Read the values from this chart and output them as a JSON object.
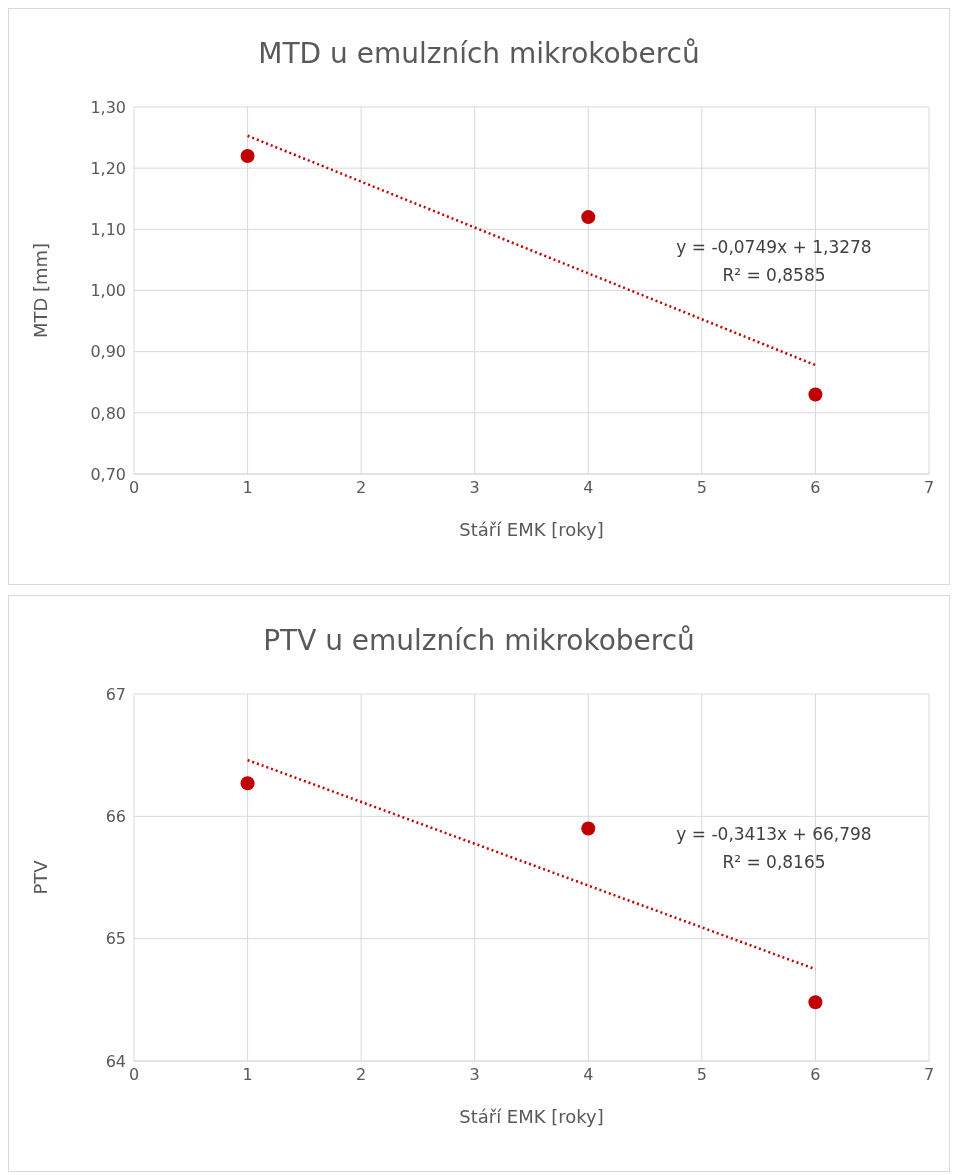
{
  "chart_data": [
    {
      "type": "scatter",
      "title": "MTD u emulzních mikrokoberců",
      "xlabel": "Stáří EMK [roky]",
      "ylabel": "MTD [mm]",
      "series": [
        {
          "color": "#c00000",
          "x": [
            1,
            4,
            6
          ],
          "values": [
            1.22,
            1.12,
            0.83
          ]
        },
        {
          "type": "line",
          "color": "#c00000",
          "x": [
            1,
            6
          ],
          "values": [
            1.253,
            0.878
          ],
          "line_style": "dotted",
          "marker": "none"
        }
      ],
      "xlim": [
        0,
        7
      ],
      "xticks": [
        0,
        1,
        2,
        3,
        4,
        5,
        6,
        7
      ],
      "ylim": [
        0.7,
        1.3
      ],
      "yticks": [
        {
          "value": 0.7,
          "label": "0,70"
        },
        {
          "value": 0.8,
          "label": "0,80"
        },
        {
          "value": 0.9,
          "label": "0,90"
        },
        {
          "value": 1.0,
          "label": "1,00"
        },
        {
          "value": 1.1,
          "label": "1,10"
        },
        {
          "value": 1.2,
          "label": "1,20"
        },
        {
          "value": 1.3,
          "label": "1,30"
        }
      ],
      "grid": true,
      "marker": "circle",
      "legend": false,
      "annotations": [
        "y = -0,0749x + 1,3278",
        "R² = 0,8585"
      ]
    },
    {
      "type": "scatter",
      "title": "PTV u emulzních mikrokoberců",
      "xlabel": "Stáří EMK [roky]",
      "ylabel": "PTV",
      "series": [
        {
          "color": "#c00000",
          "x": [
            1,
            4,
            6
          ],
          "values": [
            66.27,
            65.9,
            64.48
          ]
        },
        {
          "type": "line",
          "color": "#c00000",
          "x": [
            1,
            6
          ],
          "values": [
            66.46,
            64.75
          ],
          "line_style": "dotted",
          "marker": "none"
        }
      ],
      "xlim": [
        0,
        7
      ],
      "xticks": [
        0,
        1,
        2,
        3,
        4,
        5,
        6,
        7
      ],
      "ylim": [
        64,
        67
      ],
      "yticks": [
        64,
        65,
        66,
        67
      ],
      "grid": true,
      "marker": "circle",
      "legend": false,
      "annotations": [
        "y = -0,3413x + 66,798",
        "R² = 0,8165"
      ]
    }
  ]
}
